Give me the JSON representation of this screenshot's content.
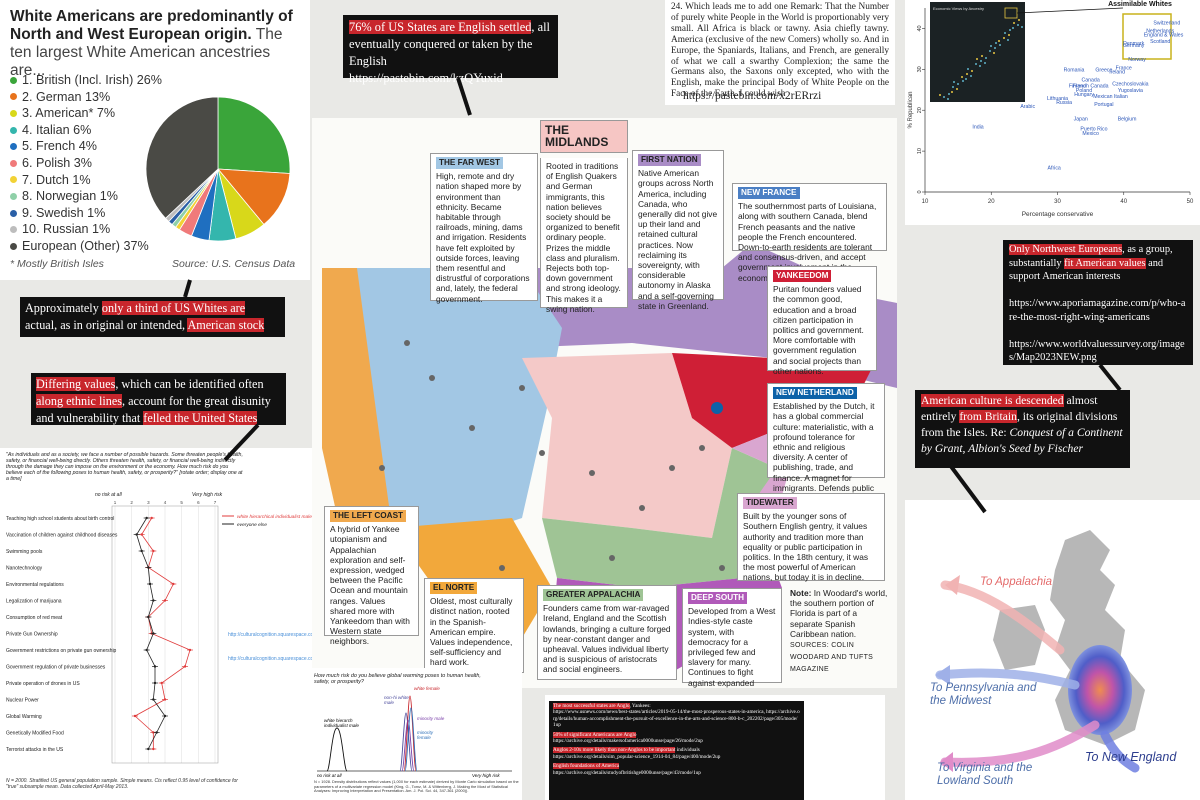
{
  "pie": {
    "title_bold": "White Americans are predominantly of North and West European origin.",
    "title_rest": " The ten largest White American ancestries are...",
    "legend": [
      {
        "label": "1. British (Incl. Irish) 26%",
        "color": "#3aa53a"
      },
      {
        "label": "2. German 13%",
        "color": "#e8731c"
      },
      {
        "label": "3. American* 7%",
        "color": "#d8d81a"
      },
      {
        "label": "4. Italian 6%",
        "color": "#34b6ad"
      },
      {
        "label": "5. French 4%",
        "color": "#1f6fc0"
      },
      {
        "label": "6. Polish 3%",
        "color": "#f07a7a"
      },
      {
        "label": "7. Dutch 1%",
        "color": "#f2d235"
      },
      {
        "label": "8. Norwegian 1%",
        "color": "#8fd0a8"
      },
      {
        "label": "9. Swedish 1%",
        "color": "#2a5fa6"
      },
      {
        "label": "10. Russian 1%",
        "color": "#bdbdbd"
      },
      {
        "label": "European (Other) 37%",
        "color": "#4a4a45"
      }
    ],
    "footnote": "* Mostly British Isles",
    "source": "Source: U.S. Census Data"
  },
  "chart_data": {
    "type": "pie",
    "categories": [
      "British (Incl. Irish)",
      "German",
      "American*",
      "Italian",
      "French",
      "Polish",
      "Dutch",
      "Norwegian",
      "Swedish",
      "Russian",
      "European (Other)"
    ],
    "values": [
      26,
      13,
      7,
      6,
      4,
      3,
      1,
      1,
      1,
      1,
      37
    ],
    "title": "White Americans are predominantly of North and West European origin."
  },
  "captions": {
    "english": {
      "pre": "",
      "hl": "76% of US States are English settled",
      "post": ", all eventually conquered or taken by the English",
      "url": "https://pastebin.com/kzQYuxid"
    },
    "third": {
      "pre": "Approximately ",
      "hl": "only a third of US Whites are",
      "mid": " actual, as in original or intended, ",
      "hl2": "American stock"
    },
    "values": {
      "hl": "Differing values",
      "mid": ", which can be identified often ",
      "hl2": "along ethnic lines",
      "mid2": ", account for the great disunity and vulnerability that ",
      "hl3": "felled the United States"
    },
    "nw": {
      "hl": "Only Northwest Europeans",
      "mid": ", as a group, substantially ",
      "hl2": "fit American values",
      "post": " and support American interests",
      "url1": "https://www.aporiamagazine.com/p/who-are-the-most-right-wing-americans",
      "url2": "https://www.worldvaluessurvey.org/images/Map2023NEW.png"
    },
    "britain": {
      "hl": "American culture is descended",
      "mid": " almost entirely ",
      "hl2": "from Britain",
      "post": ", its original divisions from the Isles. Re: ",
      "it": "Conquest of a Continent by Grant, Albion's Seed by Fischer"
    }
  },
  "quote": {
    "text": "24. Which leads me to add one Remark: That the Number of purely white People in the World is proportionably very small. All Africa is black or tawny. Asia chiefly tawny. America (exclusive of the new Comers) wholly so. And in Europe, the Spaniards, Italians, and French, are generally of what we call a swarthy Complexion; the same the Germans also, the Saxons only excepted, who with the English, make the principal Body of White People on the Face of the Earth. I could wish",
    "url": "https://pastebin.com/x2rERrzi"
  },
  "scatter": {
    "ylabel": "% Republican",
    "xlabel": "Percentage conservative",
    "callout": "Assimilable Whites",
    "inset_title": "Economic Views by Ancestry",
    "xticks": [
      "10",
      "20",
      "30",
      "40",
      "50"
    ],
    "yticks": [
      "0",
      "10",
      "20",
      "30",
      "40"
    ],
    "points": [
      {
        "label": "Switzerland",
        "x": 46.5,
        "y": 41
      },
      {
        "label": "Netherlands",
        "x": 45.5,
        "y": 39
      },
      {
        "label": "England & Wales",
        "x": 46,
        "y": 38
      },
      {
        "label": "Scotland",
        "x": 45.5,
        "y": 36.5
      },
      {
        "label": "Denmark",
        "x": 41.5,
        "y": 36
      },
      {
        "label": "Germany",
        "x": 41.5,
        "y": 35.5
      },
      {
        "label": "Norway",
        "x": 42,
        "y": 32
      },
      {
        "label": "France",
        "x": 40,
        "y": 30
      },
      {
        "label": "Romania",
        "x": 32.5,
        "y": 29.5
      },
      {
        "label": "Greece",
        "x": 37,
        "y": 29.5
      },
      {
        "label": "Ireland",
        "x": 39,
        "y": 29
      },
      {
        "label": "Canada",
        "x": 35,
        "y": 27
      },
      {
        "label": "Czechoslovakia",
        "x": 41,
        "y": 26
      },
      {
        "label": "Finland",
        "x": 33,
        "y": 25.5
      },
      {
        "label": "French Canada",
        "x": 35,
        "y": 25.5
      },
      {
        "label": "Poland",
        "x": 34,
        "y": 24.5
      },
      {
        "label": "Yugoslavia",
        "x": 41,
        "y": 24.5
      },
      {
        "label": "Hungary",
        "x": 34,
        "y": 23.5
      },
      {
        "label": "Mexican Italian",
        "x": 38,
        "y": 23
      },
      {
        "label": "Lithuania",
        "x": 30,
        "y": 22.5
      },
      {
        "label": "Russia",
        "x": 31,
        "y": 21.5
      },
      {
        "label": "Portugal",
        "x": 37,
        "y": 21
      },
      {
        "label": "Arabic",
        "x": 25.5,
        "y": 20.5
      },
      {
        "label": "Japan",
        "x": 33.5,
        "y": 17.5
      },
      {
        "label": "Belgium",
        "x": 40.5,
        "y": 17.5
      },
      {
        "label": "Puerto Rico",
        "x": 35.5,
        "y": 15
      },
      {
        "label": "Mexico",
        "x": 35,
        "y": 14
      },
      {
        "label": "India",
        "x": 18,
        "y": 15.5
      },
      {
        "label": "Africa",
        "x": 29.5,
        "y": 5.5
      }
    ]
  },
  "map": {
    "headline_line1": "THE",
    "headline_line2": "MIDLANDS",
    "midlands": "Rooted in traditions of English Quakers and German immigrants, this nation believes society should be organized to benefit ordinary people. Prizes the middle class and pluralism. Rejects both top-down government and strong ideology. This makes it a swing nation.",
    "farwest_h": "THE FAR WEST",
    "farwest": "High, remote and dry nation shaped more by environment than ethnicity. Became habitable through railroads, mining, dams and irrigation. Residents have felt exploited by outside forces, leaving them resentful and distrustful of corporations and, lately, the federal government.",
    "firstnation_h": "FIRST NATION",
    "firstnation": "Native American groups across North America, including Canada, who generally did not give up their land and retained cultural practices. Now reclaiming its sovereignty, with considerable autonomy in Alaska and a self-governing state in Greenland.",
    "newfrance_h": "NEW FRANCE",
    "newfrance": "The southernmost parts of Louisiana, along with southern Canada, blend French peasants and the native people the French encountered. Down-to-earth residents are tolerant and consensus-driven, and accept government involvement in the economy.",
    "yankeedom_h": "YANKEEDOM",
    "yankeedom": "Puritan founders valued the common good, education and a broad citizen participation in politics and government. More comfortable with government regulation and social projects than other nations.",
    "newneth_h": "NEW NETHERLAND",
    "newneth": "Established by the Dutch, it has a global commercial culture: materialistic, with a profound tolerance for ethnic and religious diversity. A center of publishing, trade, and finance. A magnet for immigrants. Defends public institutions.",
    "tidewater_h": "TIDEWATER",
    "tidewater": "Built by the younger sons of Southern English gentry, it values authority and tradition more than equality or public participation in politics. In the 18th century, it was the most powerful of American nations, but today it is in decline.",
    "leftcoast_h": "THE LEFT COAST",
    "leftcoast": "A hybrid of Yankee utopianism and Appalachian exploration and self-expression, wedged between the Pacific Ocean and mountain ranges. Values shared more with Yankeedom than with Western state neighbors.",
    "elnorte_h": "EL NORTE",
    "elnorte": "Oldest, most culturally distinct nation, rooted in the Spanish-American empire. Values independence, self-sufficiency and hard work.",
    "appalachia_h": "GREATER APPALACHIA",
    "appalachia": "Founders came from war-ravaged Ireland, England and the Scottish lowlands, bringing a culture forged by near-constant danger and upheaval. Values individual liberty and is suspicious of aristocrats and social engineers.",
    "deepsouth_h": "DEEP SOUTH",
    "deepsouth": "Developed from a West Indies-style caste system, with democracy for a privileged few and slavery for many. Continues to fight against expanded federal powers, taxes on wealth, and environmental, labor and consumer regulations.",
    "note_b": "Note:",
    "note": " In Woodard's world, the southern portion of Florida is part of a separate Spanish Caribbean nation.",
    "sources": "SOURCES: COLIN WOODARD AND TUFTS MAGAZINE"
  },
  "risk": {
    "question": "\"As individuals and as a society, we face a number of possible hazards. Some threaten people's health, safety, or financial well-being directly. Others threaten health, safety, or financial well-being indirectly through the damage they can impose on the environment or the economy. How much risk do you believe each of the following poses to human health, safety, or prosperity?\" [rotate order; display one at a time]",
    "left_scale": "no risk at all",
    "right_scale": "Very high risk",
    "series1": "white hierarchical individualist male",
    "series2": "everyone else",
    "items": [
      "Teaching high school students about birth control",
      "Vaccination of children against childhood diseases",
      "Swimming pools",
      "Nanotechnology",
      "Environmental regulations",
      "Legalization of marijuana",
      "Consumption of red meat",
      "Private Gun Ownership",
      "Government restrictions on private gun ownership",
      "Government regulation of private businesses",
      "Private operation of drones in US",
      "Nuclear Power",
      "Global Warming",
      "Genetically Modified Food",
      "Terrorist attacks in the US"
    ],
    "red": [
      3.2,
      2.6,
      3.3,
      3.0,
      4.5,
      4.0,
      3.0,
      3.2,
      5.5,
      5.2,
      3.8,
      4.0,
      2.2,
      3.3,
      3.3
    ],
    "black": [
      2.9,
      2.3,
      2.6,
      3.0,
      3.1,
      3.3,
      3.0,
      3.3,
      2.9,
      3.4,
      3.4,
      3.3,
      4.0,
      3.5,
      3.0
    ],
    "link1": "http://culturalcognition.squarespace.com/blog/2013/10/...",
    "link2": "http://culturalcognition.squarespace.com/blog/2013/9/...",
    "footnote": "N = 2000. Stratified US general population sample. Simple means. Cis reflect 0.95 level of confidence for \"true\" subsample mean. Data collected April-May 2013."
  },
  "density": {
    "question": "How much risk do you believe global warming poses to human health, safety, or prosperity?",
    "label1": "white hierarch individualist male",
    "label2": "non-hi white male",
    "label3": "white female",
    "label4": "minority male",
    "label5": "minority female",
    "left": "no risk at all",
    "right": "Very high risk",
    "footnote": "N = 1928. Density distributions reflect values (1,000 for each estimate) derived by Monte Carlo simulation based on the parameters of a multivariate regression model (King, G., Tomz, M. & Wittenberg, J. Making the Most of Statistical Analyses: Improving Interpretation and Presentation. Am. J. Pol. Sci. 44, 347-361 (2000))."
  },
  "links": [
    {
      "hl": "The most successful states are Anglo",
      "post": ", Yankees:",
      "url": "https://www.usnews.com/news/best-states/articles/2019-05-14/the-most-prosperous-states-in-america, https://archive.org/details/human-accomplishment-the-pursuit-of-excellence-in-the-arts-and-science-800-b-c_202202/page/305/mode/1up"
    },
    {
      "hl": "50% of significant Americans are Anglo",
      "post": "",
      "url": "https://archive.org/details/makersofamerica0000unse/page/26/mode/2up"
    },
    {
      "hl": "Anglos 2-10x more likely than non-Anglos to be important",
      "post": " individuals",
      "url": "https://archive.org/details/sim_popular-science_1914-04_84/page/400/mode/2up"
    },
    {
      "hl": "English foundations of America",
      "post": "",
      "url": "https://archive.org/details/studyofbritishge0000unse/page/43/mode/1up"
    }
  ],
  "migration": {
    "appalachia": "To Appalachia",
    "pennsylvania": "To Pennsylvania and the Midwest",
    "newengland": "To New England",
    "virginia": "To Virginia and the Lowland South"
  }
}
